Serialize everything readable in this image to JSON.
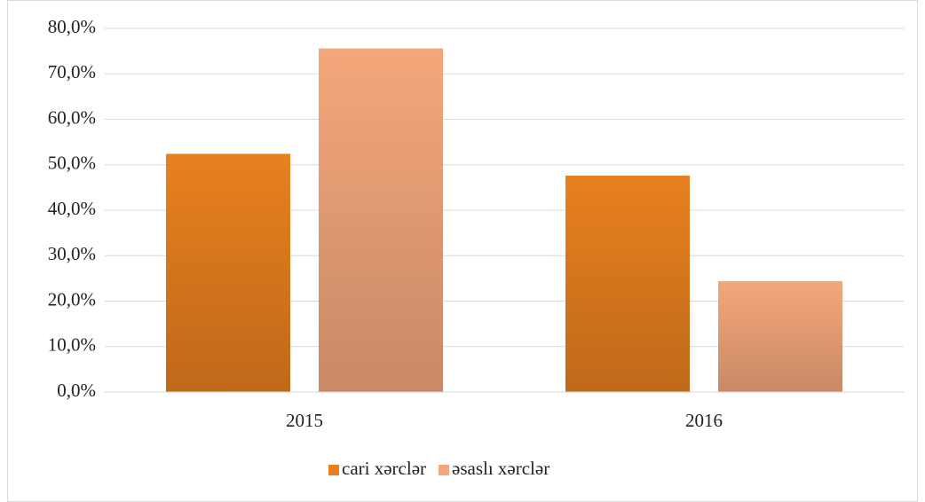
{
  "chart_data": {
    "type": "bar",
    "categories": [
      "2015",
      "2016"
    ],
    "series": [
      {
        "name": "cari xərclər",
        "color": "#e8801f",
        "values": [
          52.4,
          47.6
        ]
      },
      {
        "name": "əsaslı xərclər",
        "color": "#f4a77b",
        "values": [
          75.6,
          24.4
        ]
      }
    ],
    "ylim": [
      0,
      80
    ],
    "yticks": [
      {
        "value": 0,
        "label": "0,0%"
      },
      {
        "value": 10,
        "label": "10,0%"
      },
      {
        "value": 20,
        "label": "20,0%"
      },
      {
        "value": 30,
        "label": "30,0%"
      },
      {
        "value": 40,
        "label": "40,0%"
      },
      {
        "value": 50,
        "label": "50,0%"
      },
      {
        "value": 60,
        "label": "60,0%"
      },
      {
        "value": 70,
        "label": "70,0%"
      },
      {
        "value": 80,
        "label": "80,0%"
      }
    ],
    "grid": true,
    "legend": "bottom"
  }
}
